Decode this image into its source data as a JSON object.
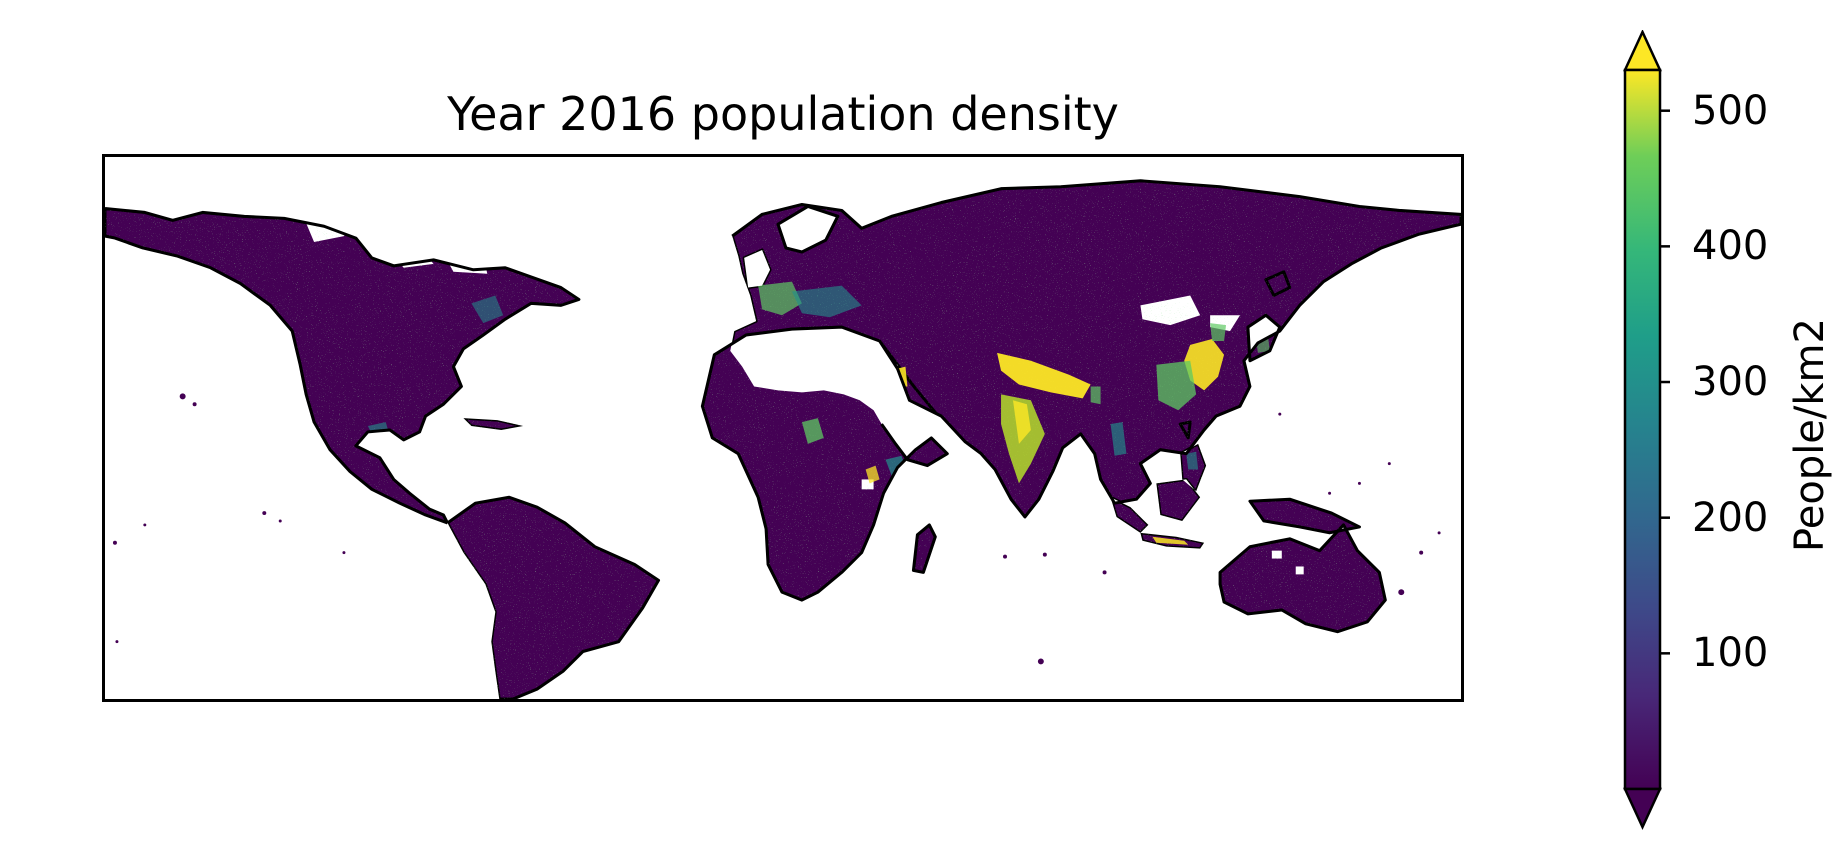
{
  "chart_data": {
    "type": "heatmap",
    "title": "Year 2016 population density",
    "colorbar": {
      "label": "People/km2",
      "ticks": [
        100,
        200,
        300,
        400,
        500
      ],
      "range": [
        0,
        530
      ],
      "extend": "both",
      "colormap": [
        "#440154",
        "#3b528b",
        "#21918c",
        "#5ec962",
        "#fde725"
      ]
    },
    "dense_regions": [
      {
        "region": "Indo-Gangetic Plain",
        "value": 500
      },
      {
        "region": "Eastern China",
        "value": 450
      },
      {
        "region": "Java",
        "value": 450
      },
      {
        "region": "Western Europe",
        "value": 300
      },
      {
        "region": "Nile Delta",
        "value": 500
      },
      {
        "region": "Nigeria",
        "value": 300
      },
      {
        "region": "Ethiopian Highlands",
        "value": 250
      }
    ],
    "background_value": 20,
    "map_projection": "PlateCarree",
    "axes_ticks_shown": false
  },
  "colors": {
    "land": "#440154",
    "coastline": "#000000",
    "ocean": "#ffffff"
  }
}
